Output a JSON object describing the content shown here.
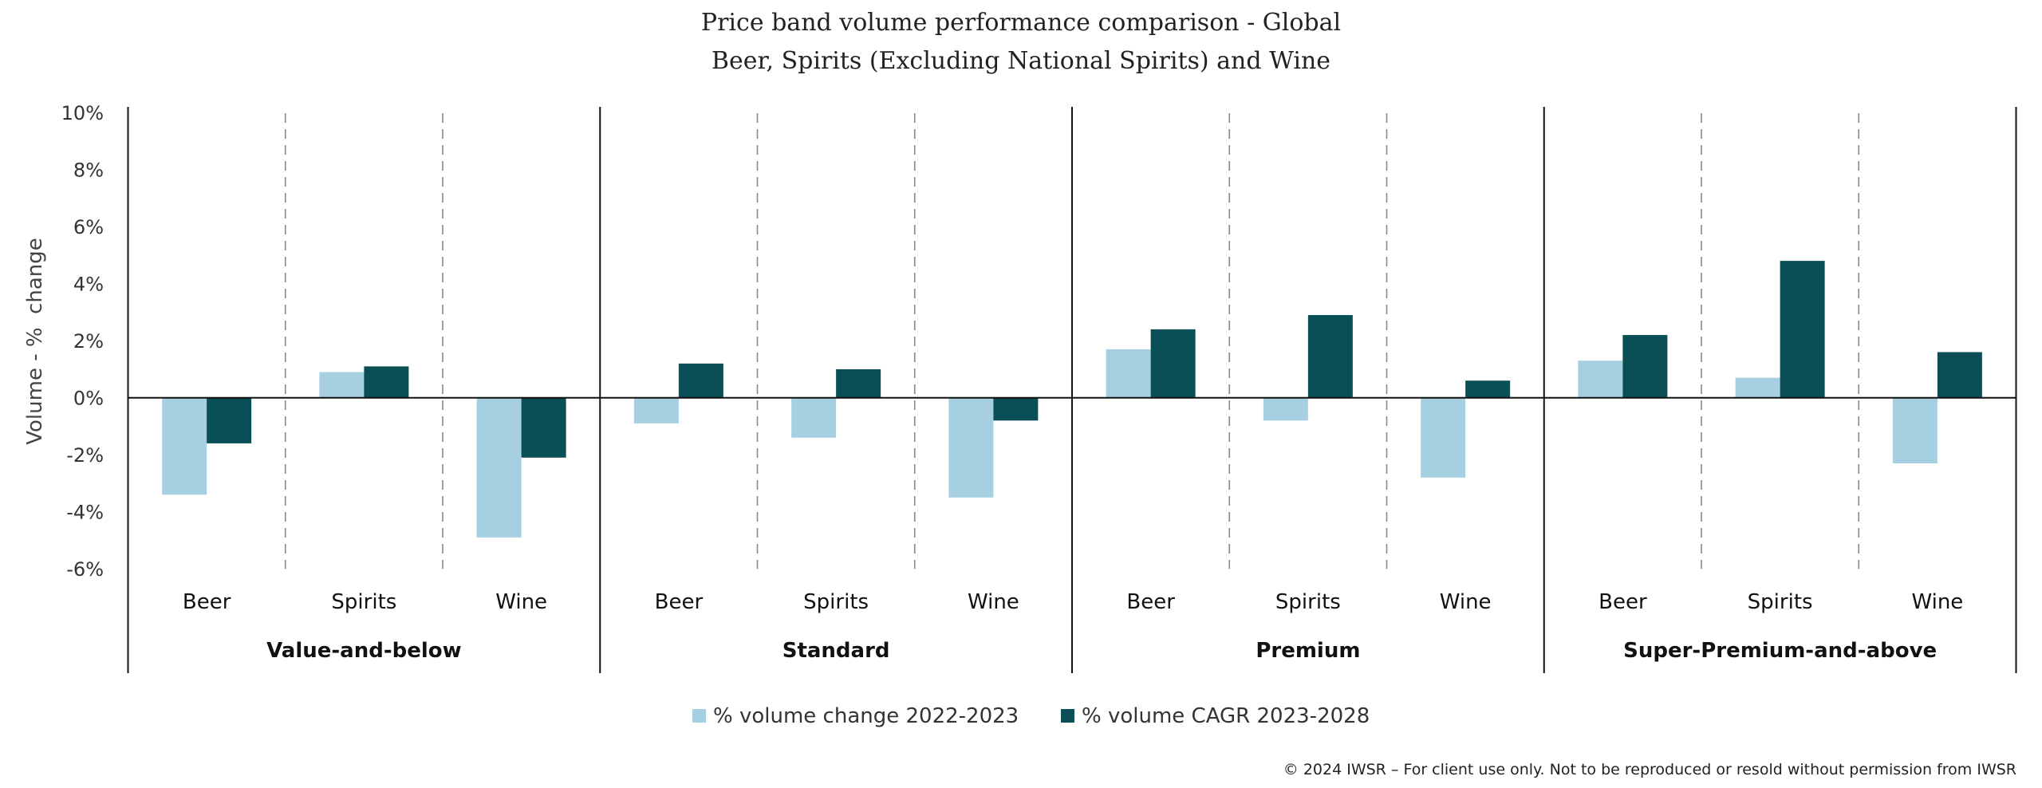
{
  "chart_data": {
    "type": "bar",
    "title": "Price band volume performance comparison - Global",
    "subtitle": "Beer, Spirits (Excluding National Spirits) and Wine",
    "xlabel": "",
    "ylabel": "Volume - %  change",
    "ylim": [
      -6,
      10
    ],
    "yticks": [
      10,
      8,
      6,
      4,
      2,
      0,
      -2,
      -4,
      -6
    ],
    "ytick_labels": [
      "10%",
      "8%",
      "6%",
      "4%",
      "2%",
      "0%",
      "-2%",
      "-4%",
      "-6%"
    ],
    "grid": false,
    "legend_position": "bottom",
    "groups": [
      "Value-and-below",
      "Standard",
      "Premium",
      "Super-Premium-and-above"
    ],
    "subcategories": [
      "Beer",
      "Spirits",
      "Wine"
    ],
    "categories": [
      "Value-and-below Beer",
      "Value-and-below Spirits",
      "Value-and-below Wine",
      "Standard Beer",
      "Standard Spirits",
      "Standard Wine",
      "Premium Beer",
      "Premium Spirits",
      "Premium Wine",
      "Super-Premium-and-above Beer",
      "Super-Premium-and-above Spirits",
      "Super-Premium-and-above Wine"
    ],
    "series": [
      {
        "name": "% volume change 2022-2023",
        "color": "#a6d0e2",
        "values": [
          -3.4,
          0.9,
          -4.9,
          -0.9,
          -1.4,
          -3.5,
          1.7,
          -0.8,
          -2.8,
          1.3,
          0.7,
          -2.3
        ]
      },
      {
        "name": "% volume CAGR 2023-2028",
        "color": "#0a4f56",
        "values": [
          -1.6,
          1.1,
          -2.1,
          1.2,
          1.0,
          -0.8,
          2.4,
          2.9,
          0.6,
          2.2,
          4.8,
          1.6
        ]
      }
    ]
  },
  "footer": "© 2024 IWSR – For client use only. Not to be reproduced or resold without permission from IWSR"
}
